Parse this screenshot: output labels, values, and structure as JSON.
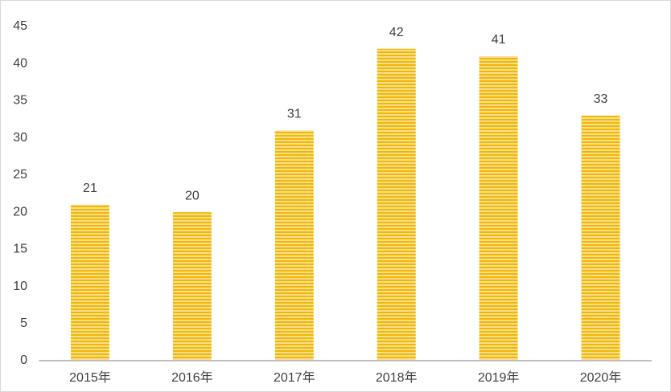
{
  "chart_data": {
    "type": "bar",
    "categories": [
      "2015年",
      "2016年",
      "2017年",
      "2018年",
      "2019年",
      "2020年"
    ],
    "values": [
      21,
      20,
      31,
      42,
      41,
      33
    ],
    "color": "#f2b705",
    "ylim": [
      0,
      45
    ],
    "yticks": [
      0,
      5,
      10,
      15,
      20,
      25,
      30,
      35,
      40,
      45
    ],
    "grid": false
  }
}
